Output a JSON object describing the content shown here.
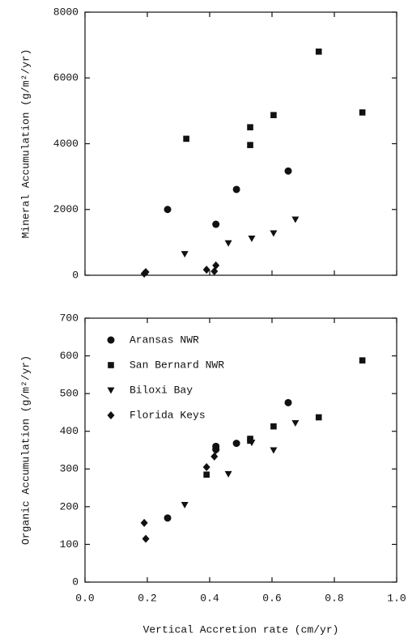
{
  "chart_data": [
    {
      "type": "scatter",
      "y_label": "Mineral Accumulation (g/m²/yr)",
      "xlim": [
        0,
        1
      ],
      "xticks": [
        0,
        0.2,
        0.4,
        0.6,
        0.8,
        1
      ],
      "xtick_labels": false,
      "ylim": [
        0,
        8000
      ],
      "yticks": [
        0,
        2000,
        4000,
        6000,
        8000
      ],
      "series": [
        {
          "name": "Aransas NWR",
          "marker": "circle",
          "color": "#111111",
          "x": [
            0.265,
            0.42,
            0.486,
            0.652
          ],
          "values": [
            2000,
            1550,
            2610,
            3170
          ]
        },
        {
          "name": "San Bernard NWR",
          "marker": "square",
          "color": "#111111",
          "x": [
            0.325,
            0.53,
            0.53,
            0.605,
            0.75,
            0.89
          ],
          "values": [
            4150,
            4500,
            3960,
            4870,
            6800,
            4950
          ]
        },
        {
          "name": "Biloxi Bay",
          "marker": "triangle",
          "color": "#111111",
          "x": [
            0.32,
            0.46,
            0.535,
            0.605,
            0.675
          ],
          "values": [
            650,
            980,
            1120,
            1280,
            1700
          ]
        },
        {
          "name": "Florida Keys",
          "marker": "diamond",
          "color": "#111111",
          "x": [
            0.19,
            0.195,
            0.39,
            0.415,
            0.42
          ],
          "values": [
            50,
            100,
            170,
            120,
            300
          ]
        }
      ],
      "legend": false
    },
    {
      "type": "scatter",
      "y_label": "Organic Accumulation (g/m²/yr)",
      "x_label": "Vertical Accretion rate (cm/yr)",
      "xlim": [
        0,
        1
      ],
      "xticks": [
        {
          "value": 0,
          "label": "0.0"
        },
        0.2,
        0.4,
        0.6,
        0.8,
        {
          "value": 1,
          "label": "1.0"
        }
      ],
      "xtick_labels": true,
      "ylim": [
        0,
        700
      ],
      "yticks": [
        0,
        100,
        200,
        300,
        400,
        500,
        600,
        700
      ],
      "series": [
        {
          "name": "Aransas NWR",
          "marker": "circle",
          "color": "#111111",
          "x": [
            0.265,
            0.42,
            0.42,
            0.486,
            0.652
          ],
          "values": [
            170,
            360,
            352,
            368,
            476
          ]
        },
        {
          "name": "San Bernard NWR",
          "marker": "square",
          "color": "#111111",
          "x": [
            0.39,
            0.53,
            0.53,
            0.605,
            0.75,
            0.89
          ],
          "values": [
            285,
            380,
            375,
            413,
            437,
            588
          ]
        },
        {
          "name": "Biloxi Bay",
          "marker": "triangle",
          "color": "#111111",
          "x": [
            0.32,
            0.46,
            0.535,
            0.605,
            0.675
          ],
          "values": [
            205,
            287,
            370,
            350,
            422
          ]
        },
        {
          "name": "Florida Keys",
          "marker": "diamond",
          "color": "#111111",
          "x": [
            0.19,
            0.195,
            0.39,
            0.415,
            0.42
          ],
          "values": [
            157,
            115,
            305,
            333,
            350
          ]
        }
      ],
      "legend": "upper left"
    }
  ]
}
